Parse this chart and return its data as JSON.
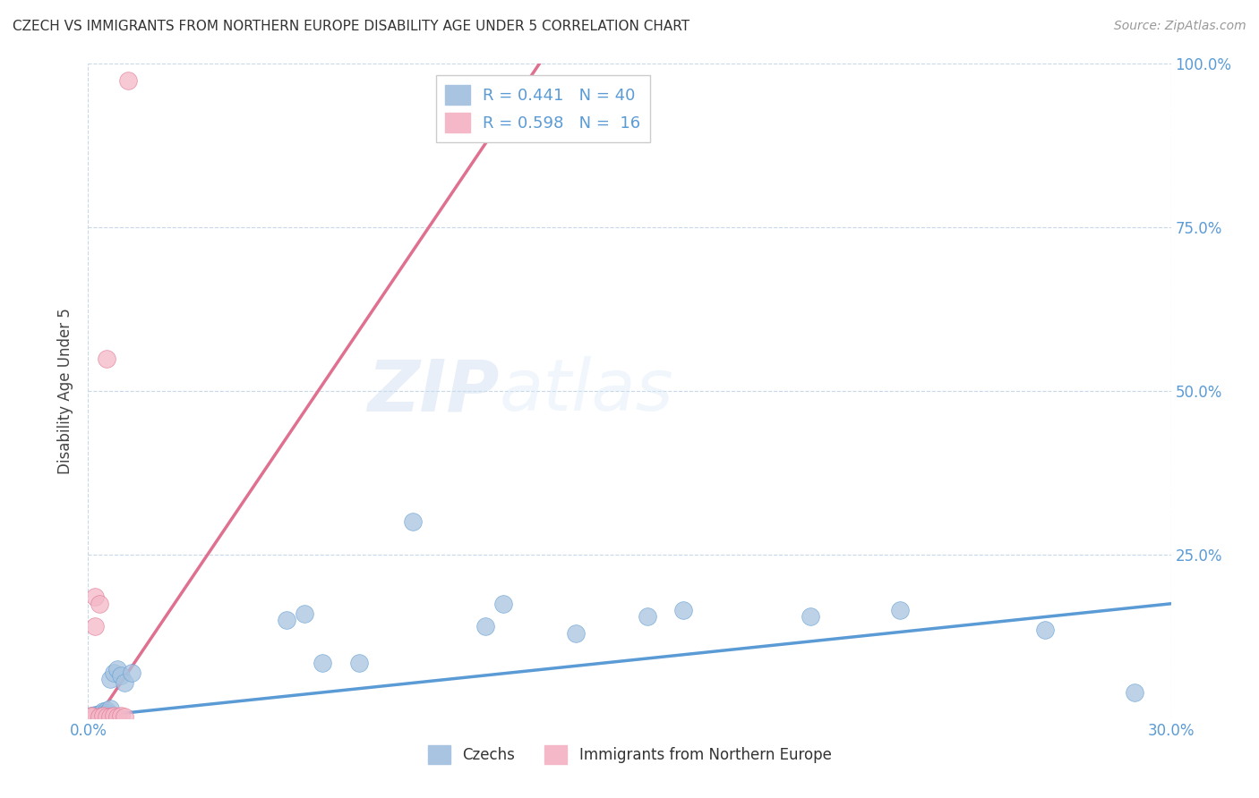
{
  "title": "CZECH VS IMMIGRANTS FROM NORTHERN EUROPE DISABILITY AGE UNDER 5 CORRELATION CHART",
  "source": "Source: ZipAtlas.com",
  "ylabel": "Disability Age Under 5",
  "xlim": [
    0.0,
    0.3
  ],
  "ylim": [
    0.0,
    1.0
  ],
  "czechs_R": 0.441,
  "czechs_N": 40,
  "immigrants_R": 0.598,
  "immigrants_N": 16,
  "czechs_color": "#a8c4e0",
  "immigrants_color": "#f4b8c8",
  "czechs_line_color": "#5b9bd5",
  "immigrants_line_color": "#e07090",
  "watermark_zip": "ZIP",
  "watermark_atlas": "atlas",
  "czechs_x": [
    0.001,
    0.001,
    0.001,
    0.002,
    0.002,
    0.002,
    0.002,
    0.002,
    0.003,
    0.003,
    0.003,
    0.003,
    0.003,
    0.004,
    0.004,
    0.004,
    0.005,
    0.005,
    0.005,
    0.006,
    0.006,
    0.007,
    0.008,
    0.009,
    0.01,
    0.012,
    0.055,
    0.06,
    0.065,
    0.075,
    0.09,
    0.11,
    0.115,
    0.135,
    0.155,
    0.165,
    0.2,
    0.225,
    0.265,
    0.29
  ],
  "czechs_y": [
    0.003,
    0.004,
    0.002,
    0.003,
    0.004,
    0.005,
    0.003,
    0.002,
    0.005,
    0.007,
    0.006,
    0.004,
    0.003,
    0.008,
    0.006,
    0.01,
    0.012,
    0.008,
    0.005,
    0.015,
    0.06,
    0.07,
    0.075,
    0.065,
    0.055,
    0.07,
    0.15,
    0.16,
    0.085,
    0.085,
    0.3,
    0.14,
    0.175,
    0.13,
    0.155,
    0.165,
    0.155,
    0.165,
    0.135,
    0.04
  ],
  "immigrants_x": [
    0.001,
    0.001,
    0.001,
    0.002,
    0.002,
    0.003,
    0.003,
    0.004,
    0.005,
    0.005,
    0.006,
    0.007,
    0.008,
    0.009,
    0.01,
    0.011
  ],
  "immigrants_y": [
    0.003,
    0.002,
    0.004,
    0.185,
    0.14,
    0.003,
    0.175,
    0.004,
    0.003,
    0.55,
    0.003,
    0.004,
    0.003,
    0.004,
    0.003,
    0.975
  ],
  "czech_trendline_x": [
    0.0,
    0.3
  ],
  "czech_trendline_y": [
    0.002,
    0.175
  ],
  "immig_trendline_x0": 0.0,
  "immig_trendline_y0": -0.02,
  "immig_trendline_x1": 0.125,
  "immig_trendline_y1": 1.0
}
